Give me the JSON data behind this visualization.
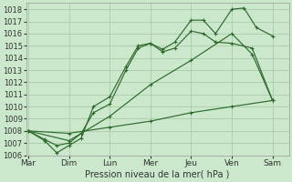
{
  "xlabel": "Pression niveau de la mer( hPa )",
  "background_color": "#cce8cc",
  "grid_color": "#aaccaa",
  "line_color": "#2d6a2d",
  "ylim": [
    1006,
    1018.5
  ],
  "yticks": [
    1006,
    1007,
    1008,
    1009,
    1010,
    1011,
    1012,
    1013,
    1014,
    1015,
    1016,
    1017,
    1018
  ],
  "day_labels": [
    "Mar",
    "Dim",
    "Lun",
    "Mer",
    "Jeu",
    "Ven",
    "Sam"
  ],
  "day_positions": [
    0,
    1,
    2,
    3,
    4,
    5,
    6
  ],
  "xlim": [
    -0.05,
    6.4
  ],
  "series": [
    {
      "x": [
        0,
        0.4,
        0.7,
        1.0,
        1.3,
        1.6,
        2.0,
        2.4,
        2.7,
        3.0,
        3.3,
        3.6,
        4.0,
        4.3,
        4.6,
        5.0,
        5.3,
        5.6,
        6.0
      ],
      "y": [
        1008,
        1007.2,
        1006.2,
        1006.8,
        1007.4,
        1010.0,
        1010.8,
        1013.3,
        1015.0,
        1015.2,
        1014.7,
        1015.3,
        1017.1,
        1017.1,
        1016.0,
        1018.0,
        1018.1,
        1016.5,
        1015.8
      ]
    },
    {
      "x": [
        0,
        0.4,
        0.7,
        1.0,
        1.3,
        1.6,
        2.0,
        2.4,
        2.7,
        3.0,
        3.3,
        3.6,
        4.0,
        4.3,
        4.6,
        5.0,
        5.5,
        6.0
      ],
      "y": [
        1008,
        1007.3,
        1006.8,
        1007.0,
        1007.8,
        1009.5,
        1010.2,
        1013.0,
        1014.8,
        1015.2,
        1014.5,
        1014.8,
        1016.2,
        1016.0,
        1015.3,
        1015.2,
        1014.8,
        1010.5
      ]
    },
    {
      "x": [
        0,
        1.0,
        2.0,
        3.0,
        4.0,
        5.0,
        5.5,
        6.0
      ],
      "y": [
        1008,
        1007.2,
        1009.2,
        1011.8,
        1013.8,
        1016.0,
        1014.3,
        1010.5
      ]
    },
    {
      "x": [
        0,
        1.0,
        2.0,
        3.0,
        4.0,
        5.0,
        6.0
      ],
      "y": [
        1008,
        1007.8,
        1008.3,
        1008.8,
        1009.5,
        1010.0,
        1010.5
      ]
    }
  ]
}
